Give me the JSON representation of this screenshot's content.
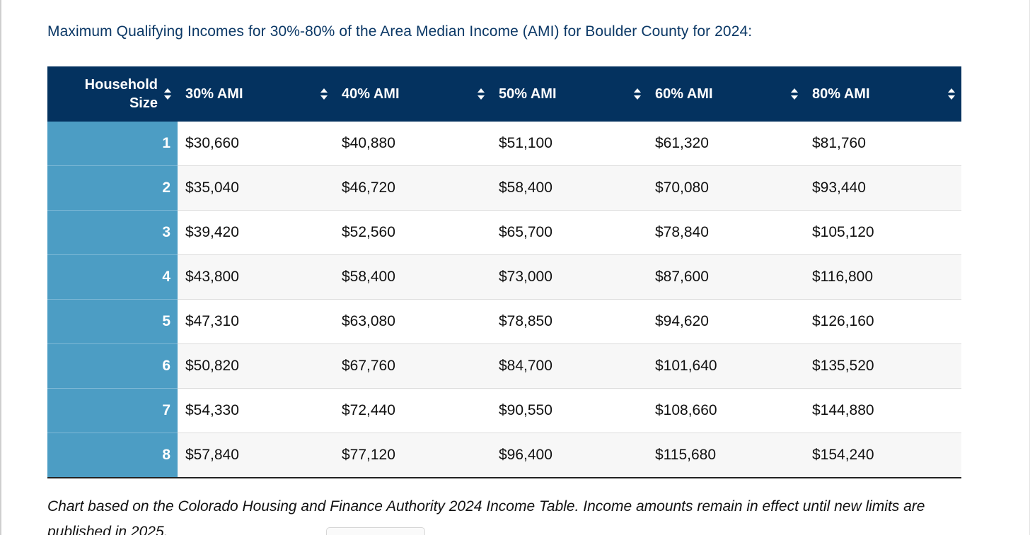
{
  "heading": "Maximum Qualifying Incomes for 30%-80% of the Area Median Income (AMI) for Boulder County for 2024:",
  "table": {
    "headers": [
      {
        "label": "Household Size",
        "sort_icon": "sort-updown-icon"
      },
      {
        "label": "30% AMI",
        "sort_icon": "sort-updown-icon"
      },
      {
        "label": "40% AMI",
        "sort_icon": "sort-updown-icon"
      },
      {
        "label": "50% AMI",
        "sort_icon": "sort-updown-icon"
      },
      {
        "label": "60% AMI",
        "sort_icon": "sort-updown-icon"
      },
      {
        "label": "80% AMI",
        "sort_icon": "sort-updown-icon"
      }
    ],
    "rows": [
      [
        "1",
        "$30,660",
        "$40,880",
        "$51,100",
        "$61,320",
        "$81,760"
      ],
      [
        "2",
        "$35,040",
        "$46,720",
        "$58,400",
        "$70,080",
        "$93,440"
      ],
      [
        "3",
        "$39,420",
        "$52,560",
        "$65,700",
        "$78,840",
        "$105,120"
      ],
      [
        "4",
        "$43,800",
        "$58,400",
        "$73,000",
        "$87,600",
        "$116,800"
      ],
      [
        "5",
        "$47,310",
        "$63,080",
        "$78,850",
        "$94,620",
        "$126,160"
      ],
      [
        "6",
        "$50,820",
        "$67,760",
        "$84,700",
        "$101,640",
        "$135,520"
      ],
      [
        "7",
        "$54,330",
        "$72,440",
        "$90,550",
        "$108,660",
        "$144,880"
      ],
      [
        "8",
        "$57,840",
        "$77,120",
        "$96,400",
        "$115,680",
        "$154,240"
      ]
    ]
  },
  "note": "Chart based on the Colorado Housing and Finance Authority 2024 Income Table. Income amounts remain in effect until new limits are published in 2025.",
  "colors": {
    "header_bg": "#04325f",
    "size_col_bg": "#4c9dc4",
    "heading_text": "#0b3866"
  }
}
